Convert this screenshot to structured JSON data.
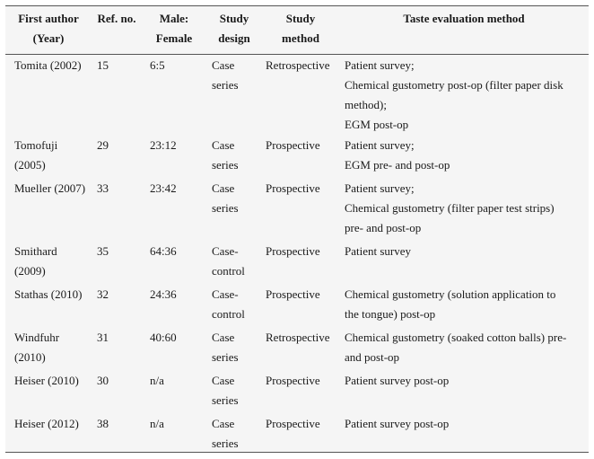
{
  "headers": [
    [
      "First author",
      "(Year)"
    ],
    [
      "Ref. no."
    ],
    [
      "Male:",
      "Female"
    ],
    [
      "Study",
      "design"
    ],
    [
      "Study",
      "method"
    ],
    [
      "Taste evaluation method"
    ]
  ],
  "rows": [
    {
      "author": [
        "Tomita (2002)"
      ],
      "ref": "15",
      "ratio": "6:5",
      "design": [
        "Case",
        "series"
      ],
      "method": "Retrospective",
      "taste": [
        "Patient survey;",
        "Chemical gustometry post-op (filter paper disk",
        "method);",
        "EGM post-op"
      ]
    },
    {
      "author": [
        "Tomofuji",
        "(2005)"
      ],
      "ref": "29",
      "ratio": "23:12",
      "design": [
        "Case",
        "series"
      ],
      "method": "Prospective",
      "taste": [
        "Patient survey;",
        "EGM pre- and post-op"
      ]
    },
    {
      "author": [
        "Mueller (2007)"
      ],
      "ref": "33",
      "ratio": "23:42",
      "design": [
        "Case",
        "series"
      ],
      "method": "Prospective",
      "taste": [
        "Patient survey;",
        "Chemical gustometry (filter paper test strips)",
        "pre- and post-op"
      ]
    },
    {
      "author": [
        "Smithard",
        "(2009)"
      ],
      "ref": "35",
      "ratio": "64:36",
      "design": [
        "Case-",
        "control"
      ],
      "method": "Prospective",
      "taste": [
        "Patient survey"
      ]
    },
    {
      "author": [
        "Stathas (2010)"
      ],
      "ref": "32",
      "ratio": "24:36",
      "design": [
        "Case-",
        "control"
      ],
      "method": "Prospective",
      "taste": [
        "Chemical gustometry (solution application to",
        "the tongue) post-op"
      ]
    },
    {
      "author": [
        "Windfuhr",
        "(2010)"
      ],
      "ref": "31",
      "ratio": "40:60",
      "design": [
        "Case",
        "series"
      ],
      "method": "Retrospective",
      "taste": [
        "Chemical gustometry (soaked cotton balls) pre-",
        "and post-op"
      ]
    },
    {
      "author": [
        "Heiser (2010)"
      ],
      "ref": "30",
      "ratio": "n/a",
      "design": [
        "Case",
        "series"
      ],
      "method": "Prospective",
      "taste": [
        "Patient survey post-op"
      ]
    },
    {
      "author": [
        "Heiser (2012)"
      ],
      "ref": "38",
      "ratio": "n/a",
      "design": [
        "Case",
        "series"
      ],
      "method": "Prospective",
      "taste": [
        "Patient survey post-op"
      ]
    }
  ]
}
